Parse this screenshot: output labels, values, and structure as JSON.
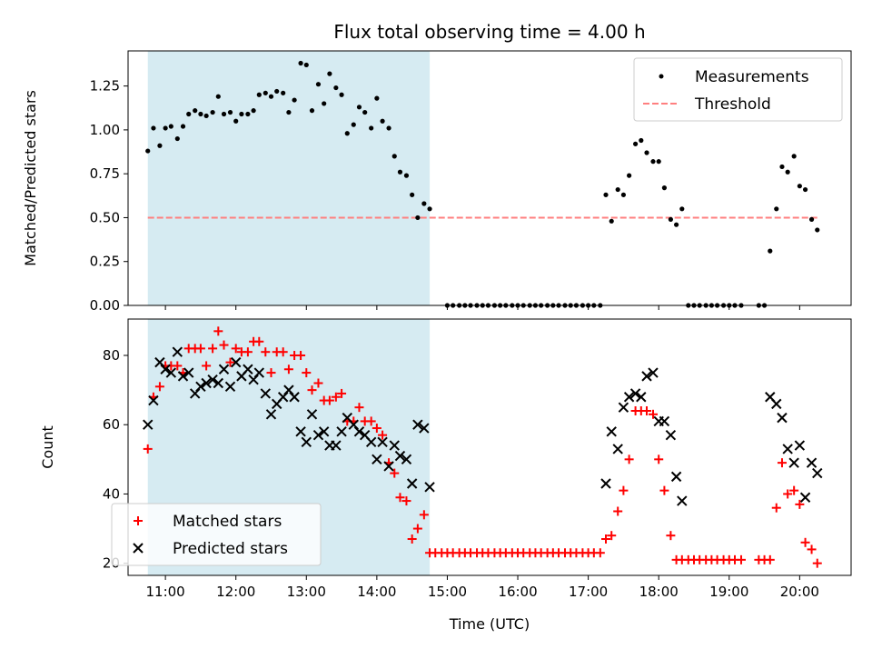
{
  "chart_data": [
    {
      "type": "scatter",
      "title": "Flux total observing time = 4.00 h",
      "ylabel": "Matched/Predicted stars",
      "xlabel": "",
      "xlim": [
        10.47,
        20.73
      ],
      "ylim": [
        0,
        1.45
      ],
      "yticks": [
        0.0,
        0.25,
        0.5,
        0.75,
        1.0,
        1.25
      ],
      "ytick_labels": [
        "0.00",
        "0.25",
        "0.50",
        "0.75",
        "1.00",
        "1.25"
      ],
      "shaded_span": [
        10.75,
        14.75
      ],
      "shade_color": "#add8e6",
      "legend_position": "top-right",
      "series": [
        {
          "name": "Measurements",
          "marker": "dot",
          "color": "#000000",
          "x": [
            10.75,
            10.83,
            10.92,
            11.0,
            11.08,
            11.17,
            11.25,
            11.33,
            11.42,
            11.5,
            11.58,
            11.67,
            11.75,
            11.83,
            11.92,
            12.0,
            12.08,
            12.17,
            12.25,
            12.33,
            12.42,
            12.5,
            12.58,
            12.67,
            12.75,
            12.83,
            12.92,
            13.0,
            13.08,
            13.17,
            13.25,
            13.33,
            13.42,
            13.5,
            13.58,
            13.67,
            13.75,
            13.83,
            13.92,
            14.0,
            14.08,
            14.17,
            14.25,
            14.33,
            14.42,
            14.5,
            14.58,
            14.67,
            14.75,
            15.0,
            15.08,
            15.17,
            15.25,
            15.33,
            15.42,
            15.5,
            15.58,
            15.67,
            15.75,
            15.83,
            15.92,
            16.0,
            16.08,
            16.17,
            16.25,
            16.33,
            16.42,
            16.5,
            16.58,
            16.67,
            16.75,
            16.83,
            16.92,
            17.0,
            17.08,
            17.17,
            17.25,
            17.33,
            17.42,
            17.5,
            17.58,
            17.67,
            17.75,
            17.83,
            17.92,
            18.0,
            18.08,
            18.17,
            18.25,
            18.33,
            18.42,
            18.5,
            18.58,
            18.67,
            18.75,
            18.83,
            18.92,
            19.0,
            19.08,
            19.17,
            19.42,
            19.5,
            19.58,
            19.67,
            19.75,
            19.83,
            19.92,
            20.0,
            20.08,
            20.17,
            20.25
          ],
          "y": [
            0.88,
            1.01,
            0.91,
            1.01,
            1.02,
            0.95,
            1.02,
            1.09,
            1.11,
            1.09,
            1.08,
            1.1,
            1.19,
            1.09,
            1.1,
            1.05,
            1.09,
            1.09,
            1.11,
            1.2,
            1.21,
            1.19,
            1.22,
            1.21,
            1.1,
            1.17,
            1.38,
            1.37,
            1.11,
            1.26,
            1.15,
            1.32,
            1.24,
            1.2,
            0.98,
            1.03,
            1.13,
            1.1,
            1.01,
            1.18,
            1.05,
            1.01,
            0.85,
            0.76,
            0.74,
            0.63,
            0.5,
            0.58,
            0.55,
            0,
            0,
            0,
            0,
            0,
            0,
            0,
            0,
            0,
            0,
            0,
            0,
            0,
            0,
            0,
            0,
            0,
            0,
            0,
            0,
            0,
            0,
            0,
            0,
            0,
            0,
            0,
            0.63,
            0.48,
            0.66,
            0.63,
            0.74,
            0.92,
            0.94,
            0.87,
            0.82,
            0.82,
            0.67,
            0.49,
            0.46,
            0.55,
            0,
            0,
            0,
            0,
            0,
            0,
            0,
            0,
            0,
            0,
            0,
            0,
            0.31,
            0.55,
            0.79,
            0.76,
            0.85,
            0.68,
            0.66,
            0.49,
            0.43
          ]
        },
        {
          "name": "Threshold",
          "marker": "dashed-line",
          "color": "#ff7f7f",
          "x": [
            10.75,
            20.25
          ],
          "y": [
            0.5,
            0.5
          ]
        }
      ]
    },
    {
      "type": "scatter",
      "title": "",
      "ylabel": "Count",
      "xlabel": "Time (UTC)",
      "xlim": [
        10.47,
        20.73
      ],
      "ylim": [
        16.5,
        90.5
      ],
      "yticks": [
        20,
        40,
        60,
        80
      ],
      "ytick_labels": [
        "20",
        "40",
        "60",
        "80"
      ],
      "xticks": [
        11,
        12,
        13,
        14,
        15,
        16,
        17,
        18,
        19,
        20
      ],
      "xtick_labels": [
        "11:00",
        "12:00",
        "13:00",
        "14:00",
        "15:00",
        "16:00",
        "17:00",
        "18:00",
        "19:00",
        "20:00"
      ],
      "shaded_span": [
        10.75,
        14.75
      ],
      "shade_color": "#add8e6",
      "legend_position": "bottom-left",
      "series": [
        {
          "name": "Matched stars",
          "marker": "plus",
          "color": "#ff0000",
          "x": [
            10.75,
            10.83,
            10.92,
            11.0,
            11.08,
            11.17,
            11.25,
            11.33,
            11.42,
            11.5,
            11.58,
            11.67,
            11.75,
            11.83,
            11.92,
            12.0,
            12.08,
            12.17,
            12.25,
            12.33,
            12.42,
            12.5,
            12.58,
            12.67,
            12.75,
            12.83,
            12.92,
            13.0,
            13.08,
            13.17,
            13.25,
            13.33,
            13.42,
            13.5,
            13.58,
            13.67,
            13.75,
            13.83,
            13.92,
            14.0,
            14.08,
            14.17,
            14.25,
            14.33,
            14.42,
            14.5,
            14.58,
            14.67,
            14.75,
            14.83,
            14.92,
            15.0,
            15.08,
            15.17,
            15.25,
            15.33,
            15.42,
            15.5,
            15.58,
            15.67,
            15.75,
            15.83,
            15.92,
            16.0,
            16.08,
            16.17,
            16.25,
            16.33,
            16.42,
            16.5,
            16.58,
            16.67,
            16.75,
            16.83,
            16.92,
            17.0,
            17.08,
            17.17,
            17.25,
            17.33,
            17.42,
            17.5,
            17.58,
            17.67,
            17.75,
            17.83,
            17.92,
            18.0,
            18.08,
            18.17,
            18.25,
            18.33,
            18.42,
            18.5,
            18.58,
            18.67,
            18.75,
            18.83,
            18.92,
            19.0,
            19.08,
            19.17,
            19.42,
            19.5,
            19.58,
            19.67,
            19.75,
            19.83,
            19.92,
            20.0,
            20.08,
            20.17,
            20.25
          ],
          "y": [
            53,
            68,
            71,
            77,
            77,
            77,
            75,
            82,
            82,
            82,
            77,
            82,
            87,
            83,
            78,
            82,
            81,
            81,
            84,
            84,
            81,
            75,
            81,
            81,
            76,
            80,
            80,
            75,
            70,
            72,
            67,
            67,
            68,
            69,
            61,
            61,
            65,
            61,
            61,
            59,
            57,
            49,
            46,
            39,
            38,
            27,
            30,
            34,
            23,
            23,
            23,
            23,
            23,
            23,
            23,
            23,
            23,
            23,
            23,
            23,
            23,
            23,
            23,
            23,
            23,
            23,
            23,
            23,
            23,
            23,
            23,
            23,
            23,
            23,
            23,
            23,
            23,
            23,
            27,
            28,
            35,
            41,
            50,
            64,
            64,
            64,
            63,
            50,
            41,
            28,
            21,
            21,
            21,
            21,
            21,
            21,
            21,
            21,
            21,
            21,
            21,
            21,
            21,
            21,
            21,
            36,
            49,
            40,
            41,
            37,
            26,
            24,
            20
          ]
        },
        {
          "name": "Predicted stars",
          "marker": "x",
          "color": "#000000",
          "x": [
            10.75,
            10.83,
            10.92,
            11.0,
            11.08,
            11.17,
            11.25,
            11.33,
            11.42,
            11.5,
            11.58,
            11.67,
            11.75,
            11.83,
            11.92,
            12.0,
            12.08,
            12.17,
            12.25,
            12.33,
            12.42,
            12.5,
            12.58,
            12.67,
            12.75,
            12.83,
            12.92,
            13.0,
            13.08,
            13.17,
            13.25,
            13.33,
            13.42,
            13.5,
            13.58,
            13.67,
            13.75,
            13.83,
            13.92,
            14.0,
            14.08,
            14.17,
            14.25,
            14.33,
            14.42,
            14.5,
            14.58,
            14.67,
            14.75,
            17.25,
            17.33,
            17.42,
            17.5,
            17.58,
            17.67,
            17.75,
            17.83,
            17.92,
            18.0,
            18.08,
            18.17,
            18.25,
            18.33,
            19.58,
            19.67,
            19.75,
            19.83,
            19.92,
            20.0,
            20.08,
            20.17,
            20.25
          ],
          "y": [
            60,
            67,
            78,
            76,
            75,
            81,
            74,
            75,
            69,
            71,
            72,
            73,
            72,
            76,
            71,
            78,
            74,
            76,
            73,
            75,
            69,
            63,
            66,
            68,
            70,
            68,
            58,
            55,
            63,
            57,
            58,
            54,
            54,
            58,
            62,
            60,
            58,
            57,
            55,
            50,
            55,
            48,
            54,
            51,
            50,
            43,
            60,
            59,
            42,
            43,
            58,
            53,
            65,
            68,
            69,
            68,
            74,
            75,
            61,
            61,
            57,
            45,
            38,
            68,
            66,
            62,
            53,
            49,
            54,
            39,
            49,
            46
          ]
        }
      ]
    }
  ]
}
